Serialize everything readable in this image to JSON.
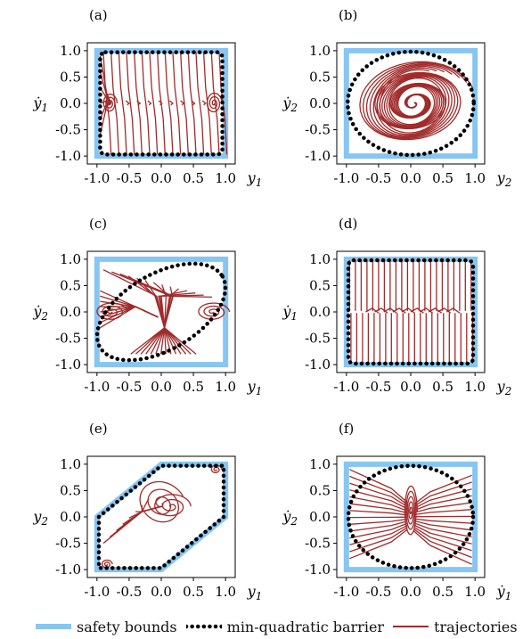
{
  "colors": {
    "safety": "#87c5f2",
    "barrier": "#000000",
    "trajectory": "#a12a2a",
    "axis": "#000000"
  },
  "legend": {
    "safety_label": "safety bounds",
    "barrier_label": "min-quadratic barrier",
    "trajectory_label": "trajectories"
  },
  "chart_data": [
    {
      "panel": "(a)",
      "type": "line",
      "xlabel": "y1",
      "ylabel": "ẏ1",
      "xlim": [
        -1.15,
        1.15
      ],
      "ylim": [
        -1.15,
        1.15
      ],
      "xticks": [
        "-1.0",
        "-0.5",
        "0.0",
        "0.5",
        "1.0"
      ],
      "yticks": [
        "-1.0",
        "-0.5",
        "0.0",
        "0.5",
        "1.0"
      ],
      "safety_box": [
        -1,
        1,
        -1,
        1
      ],
      "barrier": {
        "kind": "rounded-rect",
        "x": [
          -0.95,
          0.95
        ],
        "y": [
          -0.97,
          0.97
        ]
      },
      "trajectories": "near-vertical descending lines, small spirals near y1 = ±0.8"
    },
    {
      "panel": "(b)",
      "type": "line",
      "xlabel": "y2",
      "ylabel": "ẏ2",
      "xlim": [
        -1.15,
        1.15
      ],
      "ylim": [
        -1.15,
        1.15
      ],
      "xticks": [
        "-1.0",
        "-0.5",
        "0.0",
        "0.5",
        "1.0"
      ],
      "yticks": [
        "-1.0",
        "-0.5",
        "0.0",
        "0.5",
        "1.0"
      ],
      "safety_box": [
        -1,
        1,
        -1,
        1
      ],
      "barrier": {
        "kind": "ellipse",
        "rx": 0.98,
        "ry": 0.98
      },
      "trajectories": "spirals converging to origin"
    },
    {
      "panel": "(c)",
      "type": "line",
      "xlabel": "y1",
      "ylabel": "ẏ2",
      "xlim": [
        -1.15,
        1.15
      ],
      "ylim": [
        -1.15,
        1.15
      ],
      "xticks": [
        "-1.0",
        "-0.5",
        "0.0",
        "0.5",
        "1.0"
      ],
      "yticks": [
        "-1.0",
        "-0.5",
        "0.0",
        "0.5",
        "1.0"
      ],
      "safety_box": [
        -1,
        1,
        -1,
        1
      ],
      "barrier": {
        "kind": "tilted-ellipse",
        "rx": 1.1,
        "ry": 0.72,
        "angle": -30
      },
      "trajectories": "swirls around three centers (-0.8, 0), (0, 0), (0.8, 0)"
    },
    {
      "panel": "(d)",
      "type": "line",
      "xlabel": "y2",
      "ylabel": "ẏ1",
      "xlim": [
        -1.15,
        1.15
      ],
      "ylim": [
        -1.15,
        1.15
      ],
      "xticks": [
        "-1.0",
        "-0.5",
        "0.0",
        "0.5",
        "1.0"
      ],
      "yticks": [
        "-1.0",
        "-0.5",
        "0.0",
        "0.5",
        "1.0"
      ],
      "safety_box": [
        -1,
        1,
        -1,
        1
      ],
      "barrier": {
        "kind": "rounded-rect",
        "x": [
          -0.97,
          0.97
        ],
        "y": [
          -0.98,
          0.98
        ]
      },
      "trajectories": "dense vertical lines collapsing to ẏ1 = 0"
    },
    {
      "panel": "(e)",
      "type": "line",
      "xlabel": "y1",
      "ylabel": "y2",
      "xlim": [
        -1.15,
        1.15
      ],
      "ylim": [
        -1.15,
        1.15
      ],
      "xticks": [
        "-1.0",
        "-0.5",
        "0.0",
        "0.5",
        "1.0"
      ],
      "yticks": [
        "-1.0",
        "-0.5",
        "0.0",
        "0.5",
        "1.0"
      ],
      "safety_hexagon": [
        [
          -1,
          0
        ],
        [
          -1,
          -1
        ],
        [
          0,
          -1
        ],
        [
          1,
          0
        ],
        [
          1,
          1
        ],
        [
          0,
          1
        ]
      ],
      "barrier": {
        "kind": "hexagon",
        "scale": 0.97
      },
      "trajectories": "spirals toward (0, 0.25), clusters at (0.85, 0.9) and (-0.85, -0.9)"
    },
    {
      "panel": "(f)",
      "type": "line",
      "xlabel": "ẏ1",
      "ylabel": "ẏ2",
      "xlim": [
        -1.15,
        1.15
      ],
      "ylim": [
        -1.15,
        1.15
      ],
      "xticks": [
        "-1.0",
        "-0.5",
        "0.0",
        "0.5",
        "1.0"
      ],
      "yticks": [
        "-1.0",
        "-0.5",
        "0.0",
        "0.5",
        "1.0"
      ],
      "safety_box": [
        -1,
        1,
        -1,
        1
      ],
      "barrier": {
        "kind": "ellipse",
        "rx": 0.97,
        "ry": 0.97
      },
      "trajectories": "horizontal flows converging to a vertical spiral near origin"
    }
  ]
}
